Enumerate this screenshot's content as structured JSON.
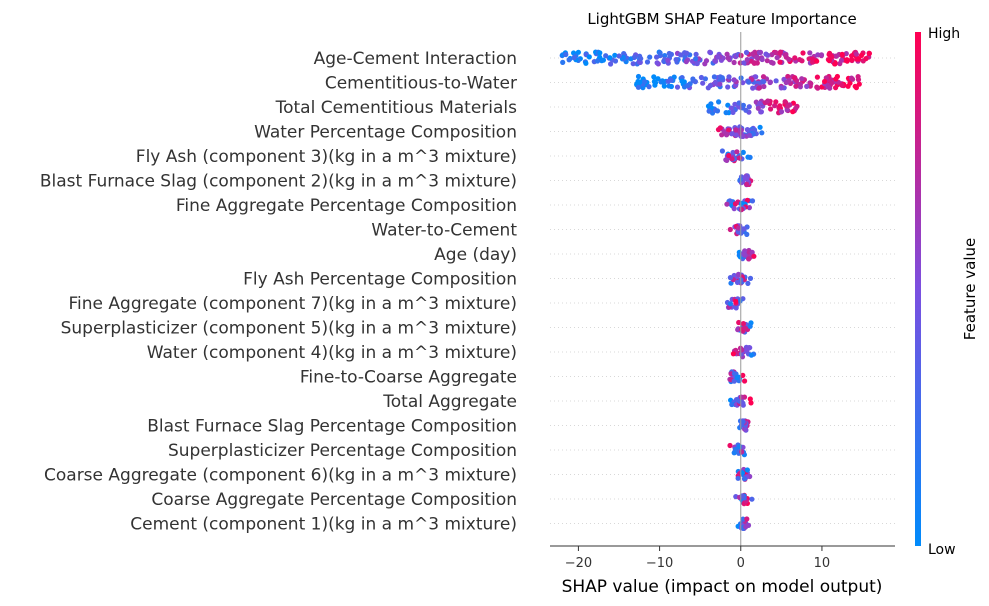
{
  "chart_data": {
    "type": "scatter",
    "title": "LightGBM SHAP Feature Importance",
    "xlabel": "SHAP value (impact on model output)",
    "xlim": [
      -23.5,
      19
    ],
    "xticks": [
      -20,
      -10,
      0,
      10
    ],
    "colorbar": {
      "label": "Feature value",
      "high": "High",
      "low": "Low",
      "low_color": "#008bfb",
      "high_color": "#ff0052"
    },
    "features": [
      {
        "name": "Age-Cement Interaction",
        "min": -22,
        "max": 16,
        "mean_abs": 9.5,
        "pattern": "low_left"
      },
      {
        "name": "Cementitious-to-Water",
        "min": -13,
        "max": 15,
        "mean_abs": 6.5,
        "pattern": "low_left"
      },
      {
        "name": "Total Cementitious Materials",
        "min": -4,
        "max": 7,
        "mean_abs": 1.8,
        "pattern": "low_left"
      },
      {
        "name": "Water Percentage Composition",
        "min": -4,
        "max": 4,
        "mean_abs": 1.5,
        "pattern": "high_left"
      },
      {
        "name": "Fly Ash (component 3)(kg in a m^3 mixture)",
        "min": -3,
        "max": 1.5,
        "mean_abs": 0.9,
        "pattern": "mixed"
      },
      {
        "name": "Blast Furnace Slag (component 2)(kg in a m^3 mixture)",
        "min": -1,
        "max": 2,
        "mean_abs": 0.7,
        "pattern": "low_left"
      },
      {
        "name": "Fine Aggregate Percentage Composition",
        "min": -2,
        "max": 2,
        "mean_abs": 0.8,
        "pattern": "mixed"
      },
      {
        "name": "Water-to-Cement",
        "min": -1.5,
        "max": 1.5,
        "mean_abs": 0.6,
        "pattern": "high_left"
      },
      {
        "name": "Age (day)",
        "min": -1,
        "max": 2.5,
        "mean_abs": 0.6,
        "pattern": "low_left"
      },
      {
        "name": "Fly Ash Percentage Composition",
        "min": -2,
        "max": 1.5,
        "mean_abs": 0.6,
        "pattern": "mixed"
      },
      {
        "name": "Fine Aggregate (component 7)(kg in a m^3 mixture)",
        "min": -2,
        "max": 1,
        "mean_abs": 0.5,
        "pattern": "mixed"
      },
      {
        "name": "Superplasticizer (component 5)(kg in a m^3 mixture)",
        "min": -1,
        "max": 1.5,
        "mean_abs": 0.5,
        "pattern": "mixed"
      },
      {
        "name": "Water  (component 4)(kg in a m^3 mixture)",
        "min": -1.5,
        "max": 2.5,
        "mean_abs": 0.5,
        "pattern": "high_left"
      },
      {
        "name": "Fine-to-Coarse Aggregate",
        "min": -2.5,
        "max": 1,
        "mean_abs": 0.4,
        "pattern": "mixed"
      },
      {
        "name": "Total Aggregate",
        "min": -1.5,
        "max": 1.5,
        "mean_abs": 0.4,
        "pattern": "high_right"
      },
      {
        "name": "Blast Furnace Slag Percentage Composition",
        "min": -0.5,
        "max": 1.5,
        "mean_abs": 0.3,
        "pattern": "low_left"
      },
      {
        "name": "Superplasticizer Percentage Composition",
        "min": -1.5,
        "max": 1,
        "mean_abs": 0.3,
        "pattern": "mixed"
      },
      {
        "name": "Coarse Aggregate  (component 6)(kg in a m^3 mixture)",
        "min": -1,
        "max": 1.5,
        "mean_abs": 0.3,
        "pattern": "mixed"
      },
      {
        "name": "Coarse Aggregate Percentage Composition",
        "min": -1,
        "max": 1.5,
        "mean_abs": 0.3,
        "pattern": "mixed"
      },
      {
        "name": "Cement (component 1)(kg in a m^3 mixture)",
        "min": -0.5,
        "max": 1.5,
        "mean_abs": 0.3,
        "pattern": "low_left"
      }
    ]
  }
}
